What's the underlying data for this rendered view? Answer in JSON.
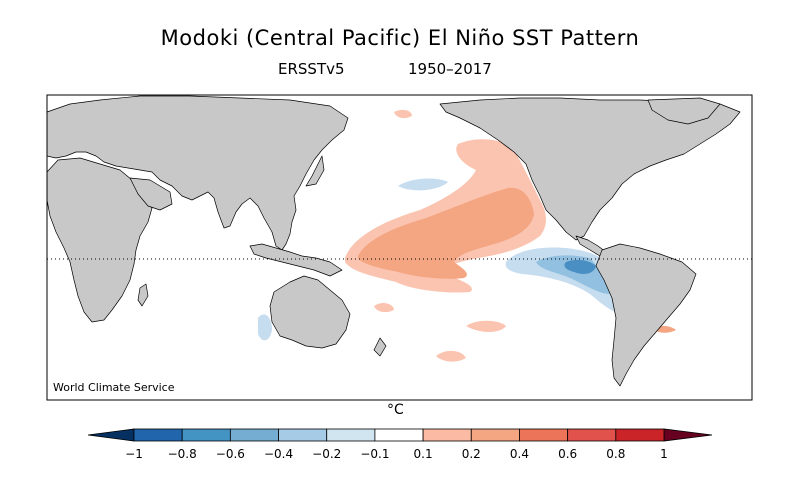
{
  "title": "Modoki (Central Pacific) El Niño SST Pattern",
  "subtitle": {
    "dataset": "ERSSTv5",
    "period": "1950–2017"
  },
  "credit": "World Climate Service",
  "colorbar": {
    "unit": "°C",
    "tick_labels": [
      "−1",
      "−0.8",
      "−0.6",
      "−0.4",
      "−0.2",
      "−0.1",
      "0.1",
      "0.2",
      "0.4",
      "0.6",
      "0.8",
      "1"
    ],
    "colors": [
      "#2166ac",
      "#4393c3",
      "#74add1",
      "#a6cbe6",
      "#d1e5f0",
      "#ffffff",
      "#fbbaa4",
      "#f4a582",
      "#ec7459",
      "#e0524b",
      "#ca2328"
    ]
  },
  "map_colors": {
    "land": "#c8c8c8",
    "ocean": "#ffffff",
    "warm_light": "#fbc4b0",
    "warm_mid": "#f4a582",
    "cool_light": "#c6dcef",
    "cool_mid": "#92c0e0",
    "cool_dark": "#4a8fc4"
  }
}
